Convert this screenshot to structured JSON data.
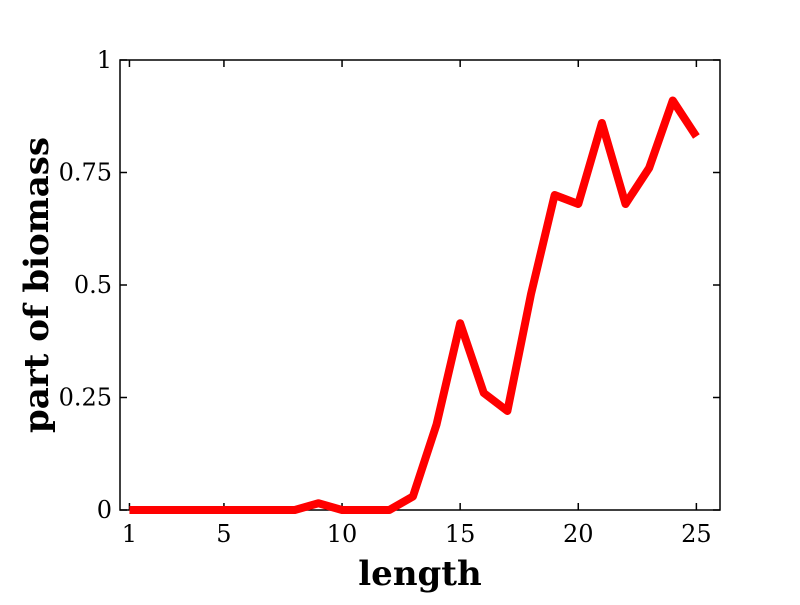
{
  "chart_data": {
    "type": "line",
    "title": "",
    "xlabel": "length",
    "ylabel": "part of biomass",
    "xlim": [
      0.6,
      26
    ],
    "ylim": [
      0,
      1
    ],
    "x_ticks": [
      1,
      5,
      10,
      15,
      20,
      25
    ],
    "x_tick_labels": [
      "1",
      "5",
      "10",
      "15",
      "20",
      "25"
    ],
    "y_ticks": [
      0,
      0.25,
      0.5,
      0.75,
      1
    ],
    "y_tick_labels": [
      "0",
      "0.25",
      "0.5",
      "0.75",
      "1"
    ],
    "grid": false,
    "legend": "none",
    "series": [
      {
        "color": "#ff0000",
        "x": [
          1,
          2,
          3,
          4,
          5,
          6,
          7,
          8,
          9,
          10,
          11,
          12,
          13,
          14,
          15,
          16,
          17,
          18,
          19,
          20,
          21,
          22,
          23,
          24,
          25
        ],
        "values": [
          0,
          0,
          0,
          0,
          0,
          0,
          0,
          0,
          0.015,
          0,
          0,
          0,
          0.03,
          0.19,
          0.415,
          0.26,
          0.22,
          0.48,
          0.7,
          0.68,
          0.86,
          0.68,
          0.76,
          0.91,
          0.83
        ]
      }
    ]
  }
}
